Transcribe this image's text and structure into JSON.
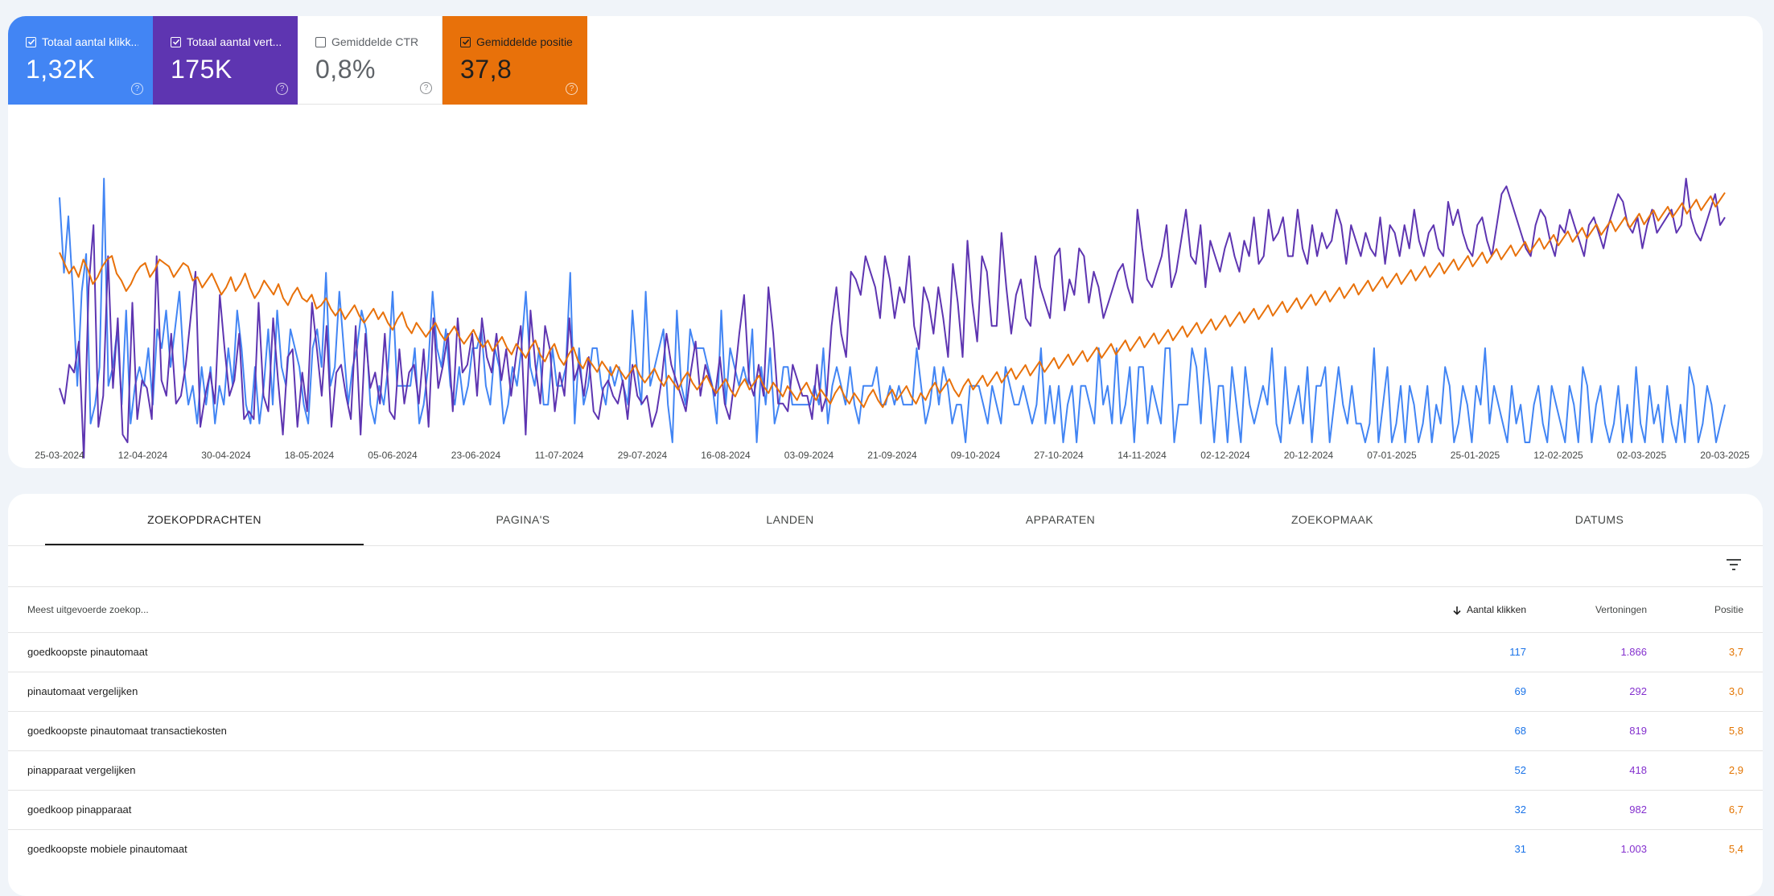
{
  "metrics": [
    {
      "label": "Totaal aantal klikk...",
      "value": "1,32K",
      "checked": true,
      "color": "#4285f4"
    },
    {
      "label": "Totaal aantal vert...",
      "value": "175K",
      "checked": true,
      "color": "#5e35b1"
    },
    {
      "label": "Gemiddelde CTR",
      "value": "0,8%",
      "checked": false,
      "color": "#00897b"
    },
    {
      "label": "Gemiddelde positie",
      "value": "37,8",
      "checked": true,
      "color": "#e8710a"
    }
  ],
  "chart_data": {
    "type": "line",
    "x_start": "25-03-2024",
    "x_end": "20-03-2025",
    "xticks": [
      "25-03-2024",
      "12-04-2024",
      "30-04-2024",
      "18-05-2024",
      "05-06-2024",
      "23-06-2024",
      "11-07-2024",
      "29-07-2024",
      "16-08-2024",
      "03-09-2024",
      "21-09-2024",
      "09-10-2024",
      "27-10-2024",
      "14-11-2024",
      "02-12-2024",
      "20-12-2024",
      "07-01-2025",
      "25-01-2025",
      "12-02-2025",
      "02-03-2025",
      "20-03-2025"
    ],
    "grid": false,
    "legend": "none",
    "series": [
      {
        "name": "Totaal aantal klikken",
        "color": "#4285f4",
        "values": [
          14,
          10,
          13,
          9,
          4,
          9,
          11,
          2,
          3,
          5,
          15,
          4,
          5,
          7,
          3,
          8,
          2,
          4,
          5,
          4,
          6,
          3,
          7,
          6,
          8,
          5,
          7,
          9,
          5,
          3,
          4,
          2,
          5,
          3,
          5,
          2,
          4,
          3,
          6,
          4,
          8,
          6,
          3,
          2,
          5,
          2,
          4,
          7,
          3,
          8,
          5,
          4,
          7,
          6,
          5,
          3,
          2,
          6,
          7,
          5,
          10,
          4,
          5,
          9,
          6,
          3,
          5,
          6,
          8,
          7,
          3,
          2,
          4,
          3,
          5,
          9,
          4,
          4,
          4,
          4,
          6,
          2,
          3,
          5,
          9,
          6,
          5,
          7,
          4,
          3,
          5,
          3,
          4,
          6,
          6,
          7,
          4,
          3,
          6,
          5,
          2,
          3,
          5,
          4,
          6,
          9,
          5,
          4,
          6,
          3,
          3,
          6,
          4,
          4,
          5,
          10,
          2,
          6,
          3,
          4,
          6,
          6,
          4,
          3,
          5,
          4,
          5,
          4,
          3,
          8,
          5,
          3,
          9,
          4,
          5,
          6,
          7,
          3,
          1,
          8,
          4,
          3,
          7,
          6,
          6,
          6,
          5,
          4,
          2,
          8,
          3,
          6,
          5,
          4,
          5,
          4,
          7,
          1,
          5,
          3,
          6,
          2,
          3,
          5,
          5,
          3,
          3,
          3,
          3,
          3,
          4,
          3,
          6,
          2,
          4,
          5,
          4,
          3,
          5,
          3,
          2,
          4,
          4,
          4,
          5,
          3,
          3,
          4,
          3,
          4,
          3,
          3,
          3,
          6,
          4,
          2,
          3,
          5,
          3,
          5,
          4,
          2,
          3,
          3,
          1,
          4,
          4,
          4,
          3,
          2,
          4,
          3,
          2,
          5,
          4,
          3,
          3,
          4,
          3,
          2,
          3,
          6,
          2,
          4,
          2,
          4,
          1,
          3,
          4,
          1,
          4,
          4,
          3,
          2,
          6,
          3,
          4,
          2,
          6,
          2,
          3,
          5,
          1,
          5,
          5,
          2,
          4,
          3,
          2,
          6,
          6,
          1,
          3,
          3,
          3,
          6,
          5,
          2,
          6,
          4,
          1,
          4,
          4,
          1,
          5,
          3,
          1,
          5,
          3,
          2,
          3,
          4,
          3,
          6,
          2,
          1,
          5,
          2,
          3,
          4,
          2,
          5,
          1,
          4,
          4,
          5,
          1,
          3,
          5,
          3,
          2,
          4,
          2,
          2,
          1,
          2,
          6,
          1,
          3,
          5,
          1,
          2,
          4,
          1,
          4,
          3,
          1,
          2,
          4,
          1,
          3,
          2,
          5,
          4,
          1,
          2,
          4,
          3,
          1,
          4,
          3,
          6,
          2,
          4,
          3,
          2,
          1,
          4,
          2,
          3,
          1,
          1,
          3,
          4,
          2,
          1,
          4,
          3,
          2,
          1,
          4,
          3,
          1,
          5,
          4,
          1,
          3,
          4,
          2,
          1,
          2,
          4,
          1,
          3,
          1,
          5,
          2,
          1,
          4,
          2,
          3,
          1,
          4,
          2,
          1,
          3,
          1,
          5,
          4,
          1,
          2,
          4,
          3,
          1,
          2,
          3
        ]
      },
      {
        "name": "Totaal aantal vertoningen",
        "color": "#5e35b1",
        "values": [
          390,
          370,
          420,
          410,
          450,
          300,
          520,
          600,
          340,
          380,
          560,
          390,
          480,
          330,
          320,
          500,
          350,
          400,
          390,
          350,
          560,
          400,
          380,
          460,
          370,
          380,
          420,
          480,
          540,
          340,
          380,
          410,
          370,
          510,
          440,
          380,
          400,
          460,
          350,
          360,
          350,
          500,
          380,
          360,
          480,
          400,
          330,
          430,
          440,
          340,
          410,
          360,
          500,
          440,
          380,
          470,
          340,
          410,
          420,
          380,
          350,
          470,
          330,
          460,
          390,
          410,
          370,
          460,
          360,
          350,
          440,
          370,
          410,
          420,
          370,
          440,
          340,
          480,
          390,
          420,
          460,
          360,
          480,
          410,
          420,
          460,
          380,
          480,
          430,
          410,
          460,
          400,
          440,
          380,
          430,
          470,
          330,
          490,
          420,
          370,
          470,
          440,
          360,
          410,
          380,
          480,
          400,
          420,
          380,
          430,
          360,
          350,
          390,
          400,
          380,
          370,
          400,
          350,
          420,
          380,
          370,
          380,
          340,
          360,
          400,
          460,
          420,
          400,
          380,
          360,
          410,
          450,
          380,
          420,
          400,
          380,
          430,
          370,
          350,
          400,
          460,
          510,
          400,
          380,
          420,
          380,
          520,
          460,
          370,
          370,
          360,
          420,
          400,
          380,
          380,
          350,
          420,
          360,
          380,
          470,
          520,
          460,
          430,
          540,
          530,
          510,
          560,
          540,
          520,
          480,
          560,
          530,
          480,
          520,
          500,
          560,
          470,
          440,
          520,
          500,
          460,
          520,
          480,
          430,
          550,
          500,
          430,
          580,
          500,
          450,
          560,
          540,
          470,
          470,
          590,
          520,
          460,
          510,
          530,
          480,
          470,
          560,
          520,
          500,
          480,
          560,
          570,
          490,
          530,
          510,
          570,
          560,
          500,
          540,
          520,
          480,
          500,
          520,
          540,
          550,
          520,
          500,
          620,
          570,
          530,
          520,
          540,
          560,
          600,
          520,
          540,
          580,
          620,
          560,
          550,
          600,
          520,
          580,
          560,
          540,
          570,
          590,
          560,
          540,
          580,
          560,
          610,
          550,
          560,
          620,
          580,
          590,
          610,
          560,
          560,
          620,
          570,
          550,
          600,
          560,
          590,
          570,
          580,
          620,
          600,
          550,
          600,
          580,
          560,
          590,
          570,
          560,
          610,
          550,
          600,
          590,
          560,
          600,
          570,
          620,
          580,
          560,
          590,
          600,
          570,
          560,
          630,
          600,
          620,
          590,
          570,
          560,
          600,
          610,
          580,
          560,
          600,
          640,
          650,
          630,
          610,
          590,
          570,
          560,
          600,
          620,
          610,
          580,
          560,
          600,
          590,
          620,
          600,
          580,
          560,
          600,
          610,
          590,
          570,
          600,
          620,
          640,
          630,
          600,
          590,
          610,
          570,
          600,
          620,
          590,
          600,
          610,
          620,
          590,
          600,
          660,
          610,
          590,
          580,
          600,
          620,
          640,
          600,
          610
        ]
      },
      {
        "name": "Gemiddelde positie",
        "color": "#e8710a",
        "values": [
          34.6,
          34.9,
          35.2,
          35.0,
          35.3,
          34.8,
          35.1,
          35.5,
          35.3,
          35.0,
          34.8,
          34.7,
          35.2,
          35.4,
          35.7,
          35.5,
          35.2,
          35.0,
          34.9,
          35.3,
          35.1,
          34.8,
          34.9,
          35.0,
          35.3,
          35.1,
          34.9,
          35.0,
          35.4,
          35.3,
          35.6,
          35.4,
          35.2,
          35.5,
          35.8,
          35.6,
          35.3,
          35.7,
          35.5,
          35.2,
          35.6,
          35.9,
          35.7,
          35.4,
          35.6,
          35.8,
          35.5,
          35.9,
          36.1,
          35.8,
          35.6,
          35.9,
          36.0,
          35.8,
          36.2,
          36.1,
          35.9,
          36.2,
          36.4,
          36.2,
          36.5,
          36.3,
          36.1,
          36.4,
          36.6,
          36.4,
          36.2,
          36.5,
          36.3,
          36.6,
          36.8,
          36.5,
          36.3,
          36.7,
          36.9,
          36.6,
          36.8,
          37.0,
          36.8,
          36.6,
          36.9,
          37.1,
          36.9,
          36.7,
          37.0,
          37.2,
          37.0,
          36.8,
          37.1,
          37.3,
          37.1,
          37.4,
          37.2,
          37.0,
          37.3,
          37.5,
          37.2,
          37.4,
          37.6,
          37.3,
          37.1,
          37.5,
          37.7,
          37.4,
          37.2,
          37.6,
          37.8,
          37.5,
          37.3,
          37.7,
          37.9,
          37.6,
          37.8,
          38.0,
          37.7,
          37.9,
          38.1,
          37.8,
          38.0,
          38.2,
          38.0,
          37.8,
          38.1,
          38.3,
          38.1,
          37.9,
          38.2,
          38.4,
          38.1,
          38.3,
          38.5,
          38.2,
          38.0,
          38.3,
          38.5,
          38.3,
          38.1,
          38.4,
          38.6,
          38.4,
          38.2,
          38.5,
          38.7,
          38.4,
          38.2,
          38.5,
          38.3,
          38.1,
          38.4,
          38.6,
          38.3,
          38.5,
          38.7,
          38.4,
          38.6,
          38.8,
          38.5,
          38.3,
          38.6,
          38.8,
          38.5,
          38.7,
          38.9,
          38.6,
          38.4,
          38.7,
          38.9,
          38.6,
          38.8,
          39.0,
          38.7,
          38.5,
          38.8,
          39.0,
          38.7,
          38.5,
          38.8,
          38.6,
          38.4,
          38.7,
          38.9,
          38.6,
          38.8,
          38.5,
          38.3,
          38.6,
          38.4,
          38.2,
          38.5,
          38.7,
          38.4,
          38.2,
          38.5,
          38.3,
          38.1,
          38.4,
          38.2,
          38.0,
          38.3,
          38.1,
          37.9,
          38.2,
          38.0,
          37.8,
          38.1,
          37.9,
          37.7,
          38.0,
          37.8,
          37.6,
          37.9,
          37.7,
          37.5,
          37.8,
          37.6,
          37.4,
          37.7,
          37.5,
          37.3,
          37.6,
          37.4,
          37.2,
          37.5,
          37.3,
          37.1,
          37.4,
          37.2,
          37.0,
          37.3,
          37.1,
          36.9,
          37.2,
          37.0,
          36.8,
          37.1,
          36.9,
          36.7,
          37.0,
          36.8,
          36.6,
          36.9,
          36.7,
          36.5,
          36.8,
          36.6,
          36.4,
          36.7,
          36.5,
          36.3,
          36.6,
          36.4,
          36.2,
          36.5,
          36.3,
          36.1,
          36.4,
          36.2,
          36.0,
          36.3,
          36.1,
          35.9,
          36.2,
          36.0,
          35.8,
          36.1,
          35.9,
          35.7,
          36.0,
          35.8,
          35.6,
          35.9,
          35.7,
          35.5,
          35.8,
          35.6,
          35.4,
          35.7,
          35.5,
          35.3,
          35.6,
          35.4,
          35.2,
          35.5,
          35.3,
          35.1,
          35.4,
          35.2,
          35.0,
          35.3,
          35.1,
          34.9,
          35.2,
          35.0,
          34.8,
          35.1,
          34.9,
          34.7,
          35.0,
          34.8,
          34.6,
          34.9,
          34.7,
          34.5,
          34.8,
          34.6,
          34.4,
          34.7,
          34.5,
          34.3,
          34.6,
          34.4,
          34.2,
          34.5,
          34.3,
          34.1,
          34.4,
          34.2,
          34.0,
          34.3,
          34.1,
          33.9,
          34.2,
          34.0,
          33.8,
          34.1,
          33.9,
          33.7,
          34.0,
          33.8,
          33.6,
          33.9,
          33.7,
          33.5,
          33.8,
          33.6,
          33.4,
          33.7,
          33.5,
          33.3,
          33.6,
          33.4,
          33.2,
          33.5,
          33.3,
          33.1,
          33.4,
          33.2,
          33.0,
          33.3,
          33.1,
          32.9
        ]
      }
    ]
  },
  "tabs": [
    "ZOEKOPDRACHTEN",
    "PAGINA'S",
    "LANDEN",
    "APPARATEN",
    "ZOEKOPMAAK",
    "DATUMS"
  ],
  "table": {
    "headers": [
      "Meest uitgevoerde zoekop...",
      "Aantal klikken",
      "Vertoningen",
      "Positie"
    ],
    "rows": [
      [
        "goedkoopste pinautomaat",
        "117",
        "1.866",
        "3,7"
      ],
      [
        "pinautomaat vergelijken",
        "69",
        "292",
        "3,0"
      ],
      [
        "goedkoopste pinautomaat transactiekosten",
        "68",
        "819",
        "5,8"
      ],
      [
        "pinapparaat vergelijken",
        "52",
        "418",
        "2,9"
      ],
      [
        "goedkoop pinapparaat",
        "32",
        "982",
        "6,7"
      ],
      [
        "goedkoopste mobiele pinautomaat",
        "31",
        "1.003",
        "5,4"
      ]
    ]
  },
  "colors": {
    "clicks": "#1a73e8",
    "impressions": "#8430ce",
    "position": "#e37400"
  },
  "icons": {
    "help": "help-circle-icon",
    "filter": "filter-icon",
    "sort": "arrow-down-icon",
    "check": "check-icon"
  }
}
